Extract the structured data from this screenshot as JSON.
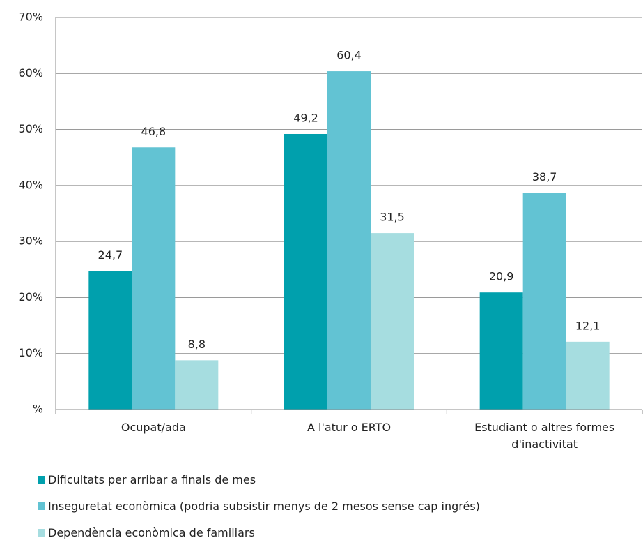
{
  "chart_data": {
    "type": "bar",
    "categories": [
      "Ocupat/ada",
      "A l'atur o ERTO",
      "Estudiant o altres formes d'inactivitat"
    ],
    "series": [
      {
        "name": "Dificultats per arribar a finals de mes",
        "color": "#00a0ad",
        "values": [
          24.7,
          49.2,
          20.9
        ],
        "value_labels": [
          "24,7",
          "49,2",
          "20,9"
        ]
      },
      {
        "name": "Inseguretat econòmica (podria subsistir menys de 2 mesos sense cap ingrés)",
        "color": "#62c3d3",
        "values": [
          46.8,
          60.4,
          38.7
        ],
        "value_labels": [
          "46,8",
          "60,4",
          "38,7"
        ]
      },
      {
        "name": "Dependència econòmica de familiars",
        "color": "#a6dde0",
        "values": [
          8.8,
          31.5,
          12.1
        ],
        "value_labels": [
          "8,8",
          "31,5",
          "12,1"
        ]
      }
    ],
    "ylim": [
      0,
      70
    ],
    "yticks": [
      {
        "value": 0,
        "label": "%"
      },
      {
        "value": 10,
        "label": "10%"
      },
      {
        "value": 20,
        "label": "20%"
      },
      {
        "value": 30,
        "label": "30%"
      },
      {
        "value": 40,
        "label": "40%"
      },
      {
        "value": 50,
        "label": "50%"
      },
      {
        "value": 60,
        "label": "60%"
      },
      {
        "value": 70,
        "label": "70%"
      }
    ],
    "grid": true
  }
}
